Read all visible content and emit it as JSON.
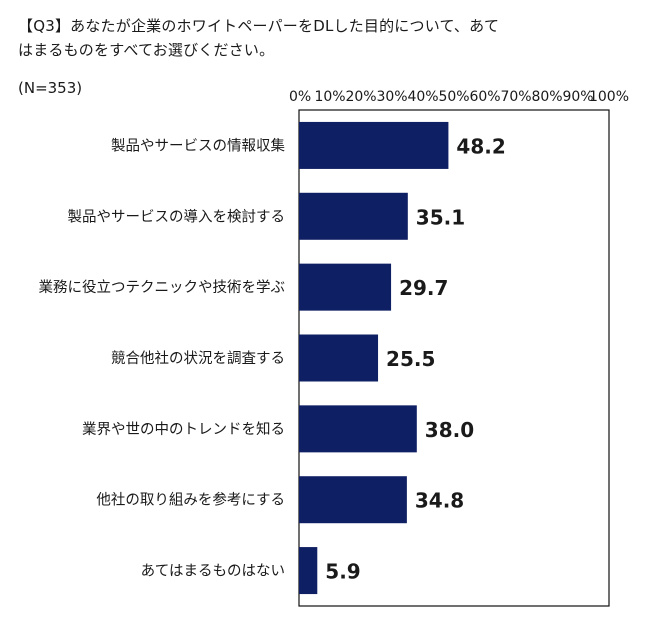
{
  "question": {
    "line1": "【Q3】あなたが企業のホワイトペーパーをDLした目的について、あて",
    "line2": "はまるものをすべてお選びください。",
    "sample": "(N=353)"
  },
  "chart_data": {
    "type": "bar",
    "orientation": "horizontal",
    "categories": [
      "製品やサービスの情報収集",
      "製品やサービスの導入を検討する",
      "業務に役立つテクニックや技術を学ぶ",
      "競合他社の状況を調査する",
      "業界や世の中のトレンドを知る",
      "他社の取り組みを参考にする",
      "あてはまるものはない"
    ],
    "values": [
      48.2,
      35.1,
      29.7,
      25.5,
      38.0,
      34.8,
      5.9
    ],
    "value_labels": [
      "48.2",
      "35.1",
      "29.7",
      "25.5",
      "38.0",
      "34.8",
      "5.9"
    ],
    "xlim": [
      0,
      100
    ],
    "x_ticks": [
      "0%",
      "10%",
      "20%",
      "30%",
      "40%",
      "50%",
      "60%",
      "70%",
      "80%",
      "90%",
      "100%"
    ],
    "bar_color": "#0f1f63",
    "grid": false
  }
}
